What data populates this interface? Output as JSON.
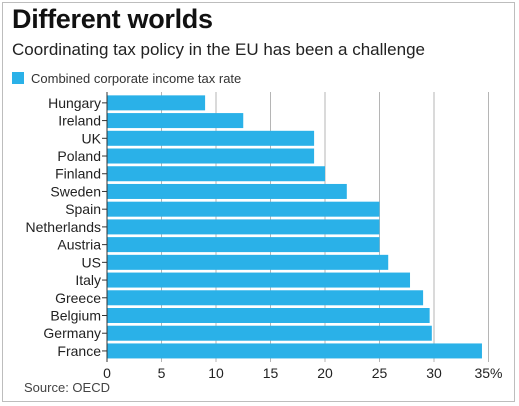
{
  "title": "Different worlds",
  "subtitle": "Coordinating tax policy in the EU has been a challenge",
  "source": "Source: OECD",
  "colors": {
    "bar": "#2ab1e8",
    "grid": "#b5b5b5",
    "text": "#222222"
  },
  "chart_data": {
    "type": "bar",
    "orientation": "horizontal",
    "title": "Different worlds",
    "subtitle": "Coordinating tax policy in the EU has been a challenge",
    "categories": [
      "Hungary",
      "Ireland",
      "UK",
      "Poland",
      "Finland",
      "Sweden",
      "Spain",
      "Netherlands",
      "Austria",
      "US",
      "Italy",
      "Greece",
      "Belgium",
      "Germany",
      "France"
    ],
    "series": [
      {
        "name": "Combined corporate income tax rate",
        "values": [
          9.0,
          12.5,
          19.0,
          19.0,
          20.0,
          22.0,
          25.0,
          25.0,
          25.0,
          25.8,
          27.8,
          29.0,
          29.6,
          29.8,
          34.4
        ]
      }
    ],
    "xlim": [
      0,
      35
    ],
    "xticks": [
      0,
      5,
      10,
      15,
      20,
      25,
      30,
      35
    ],
    "xtick_labels": [
      "0",
      "5",
      "10",
      "15",
      "20",
      "25",
      "30",
      "35%"
    ],
    "grid": "vertical",
    "legend": "top-left"
  }
}
